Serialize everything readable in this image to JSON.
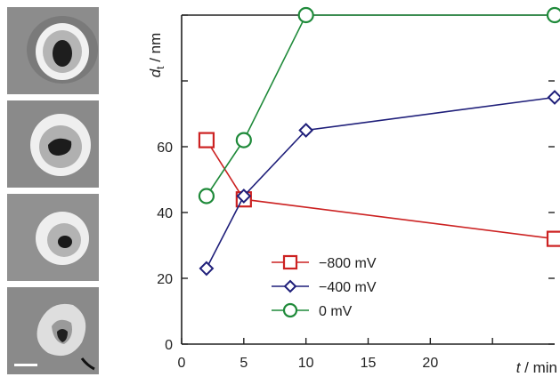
{
  "sem_images": {
    "panels": [
      {
        "label": "",
        "shape": "ring-dark-pore"
      },
      {
        "label": "",
        "shape": "ring-dark-pore-wide"
      },
      {
        "label": "",
        "shape": "ring-small-pore"
      },
      {
        "label": "",
        "shape": "ring-irregular"
      }
    ],
    "colors": {
      "background": "#8f8f8f",
      "ring": "#e8e8e8",
      "pore": "#1e1e1e"
    }
  },
  "chart_data": {
    "type": "line",
    "xlabel_var": "t",
    "xlabel_sep": " / ",
    "xlabel_unit": "min",
    "ylabel_var": "d",
    "ylabel_sub": "t",
    "ylabel_sep": " / ",
    "ylabel_unit": "nm",
    "xlim": [
      0,
      30
    ],
    "ylim": [
      0,
      100
    ],
    "x_ticks": [
      0,
      5,
      10,
      15,
      20
    ],
    "x_ticks_minor": [
      25
    ],
    "y_ticks": [
      0,
      20,
      40,
      60
    ],
    "y_ticks_unlabeled": [
      80,
      100
    ],
    "grid": false,
    "legend_position": "bottom-center",
    "series": [
      {
        "name": "−800 mV",
        "color": "#cc2222",
        "marker": "square",
        "x": [
          2,
          5,
          30
        ],
        "y": [
          62,
          44,
          32
        ]
      },
      {
        "name": "−400 mV",
        "color": "#1f1f7a",
        "marker": "diamond",
        "x": [
          2,
          5,
          10,
          30
        ],
        "y": [
          23,
          45,
          65,
          75
        ]
      },
      {
        "name": "0 mV",
        "color": "#1f8a3a",
        "marker": "circle",
        "x": [
          2,
          5,
          10,
          30
        ],
        "y": [
          45,
          62,
          100,
          100
        ]
      }
    ]
  }
}
